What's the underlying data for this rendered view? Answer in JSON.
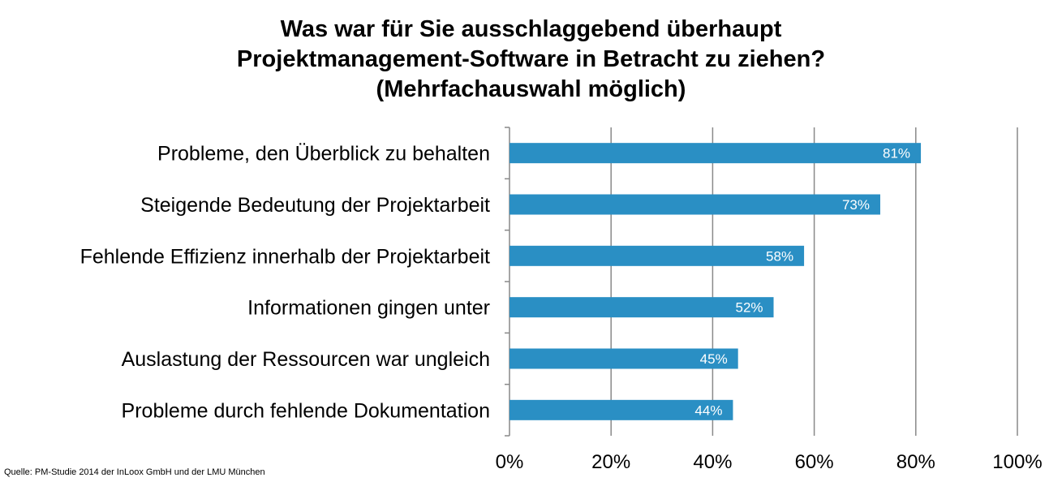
{
  "chart_data": {
    "type": "bar",
    "orientation": "horizontal",
    "title": [
      "Was war für Sie ausschlaggebend überhaupt",
      "Projektmanagement-Software in Betracht zu ziehen?",
      "(Mehrfachauswahl möglich)"
    ],
    "categories": [
      "Probleme, den Überblick zu behalten",
      "Steigende Bedeutung der Projektarbeit",
      "Fehlende Effizienz innerhalb der Projektarbeit",
      "Informationen gingen unter",
      "Auslastung der Ressourcen war ungleich",
      "Probleme durch fehlende Dokumentation"
    ],
    "values": [
      81,
      73,
      58,
      52,
      45,
      44
    ],
    "data_labels": [
      "81%",
      "73%",
      "58%",
      "52%",
      "45%",
      "44%"
    ],
    "xlim": [
      0,
      100
    ],
    "x_ticks": [
      0,
      20,
      40,
      60,
      80,
      100
    ],
    "x_tick_labels": [
      "0%",
      "20%",
      "40%",
      "60%",
      "80%",
      "100%"
    ],
    "xlabel": "",
    "ylabel": "",
    "grid": true,
    "legend": "none",
    "bar_color": "#2a8fc4",
    "grid_color": "#898989"
  },
  "source": "Quelle: PM-Studie 2014 der InLoox GmbH und der LMU München"
}
